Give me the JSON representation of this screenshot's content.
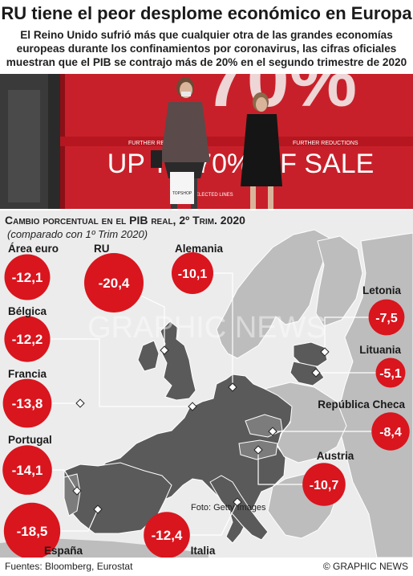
{
  "header": {
    "title": "RU tiene el peor desplome económico en Europa",
    "subtitle_lines": [
      "El Reino Unido sufrió más que cualquier otra de las grandes economías",
      "europeas durante los confinamientos por coronavirus, las cifras oficiales",
      "muestran que el PIB se contrajo más de 20% en el segundo trimestre de 2020"
    ]
  },
  "photo": {
    "sign_big": "70%",
    "sign_sale": "UP TO 70% OF SALE",
    "banner_text": "FURTHER REDUCTIONS",
    "bag_text": "TOPSHOP",
    "shop_text": "SELECTED LINES"
  },
  "colors": {
    "bubble": "#d9151e",
    "land_highlight": "#5a5a5a",
    "land": "#bdbdbd",
    "land_dark": "#7c7c7c",
    "sea": "#ececec",
    "photo_red": "#c8202a"
  },
  "chart_data": {
    "type": "bubble-map",
    "title": "Cambio porcentual en el PIB real, 2º Trim. 2020",
    "subtitle": "(comparado con 1º Trim 2020)",
    "series": [
      {
        "name": "Área euro",
        "value": -12.1,
        "label": "-12,1"
      },
      {
        "name": "RU",
        "value": -20.4,
        "label": "-20,4"
      },
      {
        "name": "Alemania",
        "value": -10.1,
        "label": "-10,1"
      },
      {
        "name": "Bélgica",
        "value": -12.2,
        "label": "-12,2"
      },
      {
        "name": "Francia",
        "value": -13.8,
        "label": "-13,8"
      },
      {
        "name": "Portugal",
        "value": -14.1,
        "label": "-14,1"
      },
      {
        "name": "España",
        "value": -18.5,
        "label": "-18,5"
      },
      {
        "name": "Italia",
        "value": -12.4,
        "label": "-12,4"
      },
      {
        "name": "Letonia",
        "value": -7.5,
        "label": "-7,5"
      },
      {
        "name": "Lituania",
        "value": -5.1,
        "label": "-5,1"
      },
      {
        "name": "República Checa",
        "value": -8.4,
        "label": "-8,4"
      },
      {
        "name": "Austria",
        "value": -10.7,
        "label": "-10,7"
      }
    ]
  },
  "watermark": "GRAPHIC NEWS",
  "footer": {
    "sources": "Fuentes: Bloomberg, Eurostat",
    "photo_credit": "Foto: Getty Images",
    "brand": "© GRAPHIC NEWS"
  }
}
